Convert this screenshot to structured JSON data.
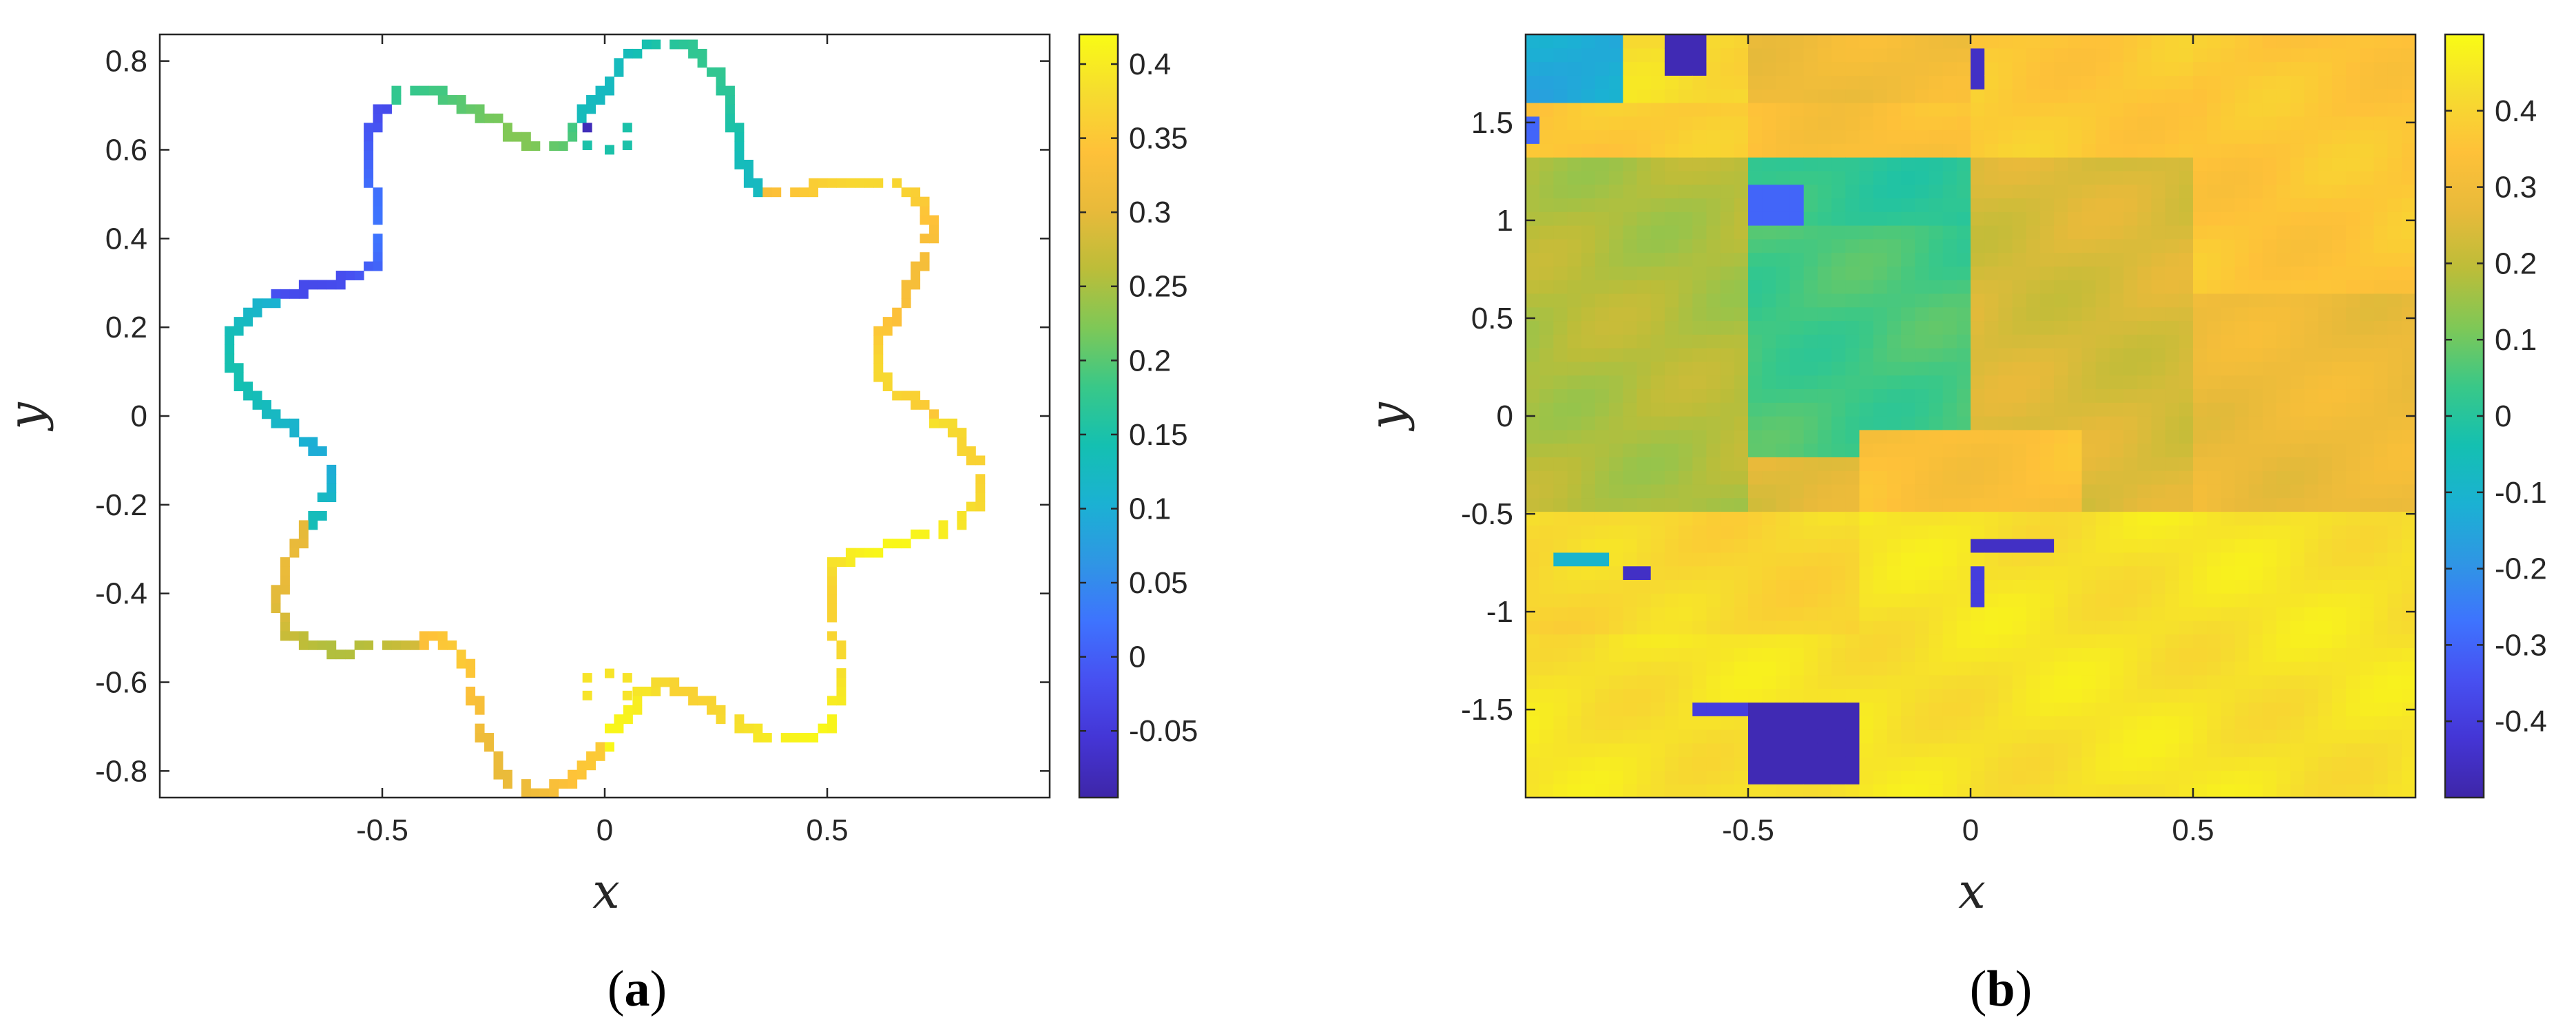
{
  "colors": {
    "colormap": [
      "#3e26a8",
      "#4435d5",
      "#4750f1",
      "#3e73fe",
      "#2f96e4",
      "#1bb1d3",
      "#14c0b1",
      "#39c888",
      "#7ec857",
      "#bcbd39",
      "#e8ba3a",
      "#fec139",
      "#f6dc2f",
      "#f9fb15"
    ],
    "frame": "#262626"
  },
  "chart_data": [
    {
      "type": "scatter",
      "panel_label": "(a)",
      "panel_letter": "a",
      "xlabel": "x",
      "ylabel": "y",
      "xlim": [
        -1.0,
        1.0
      ],
      "ylim": [
        -0.86,
        0.86
      ],
      "xticks": [
        -0.5,
        0,
        0.5
      ],
      "xtick_labels": [
        "-0.5",
        "0",
        "0.5"
      ],
      "yticks": [
        0.8,
        0.6,
        0.4,
        0.2,
        0,
        -0.2,
        -0.4,
        -0.6,
        -0.8
      ],
      "ytick_labels": [
        "0.8",
        "0.6",
        "0.4",
        "0.2",
        "0",
        "-0.2",
        "-0.4",
        "-0.6",
        "-0.8"
      ],
      "colorbar": {
        "lim": [
          -0.095,
          0.42
        ],
        "ticks": [
          0.4,
          0.35,
          0.3,
          0.25,
          0.2,
          0.15,
          0.1,
          0.05,
          0,
          -0.05
        ],
        "tick_labels": [
          "0.4",
          "0.35",
          "0.3",
          "0.25",
          "0.2",
          "0.15",
          "0.1",
          "0.05",
          "0",
          "-0.05"
        ]
      },
      "grid": false,
      "marker": "square-pixel",
      "description_of_data": "pixel samples along a flower-shaped closed boundary with 8 lobes plus small inner notches at top and bottom",
      "boundary": {
        "base_radius": 0.74,
        "lobe_amplitude": 0.12,
        "lobes": 8,
        "cells": 96
      },
      "color_regions": [
        {
          "angle_deg": [
            55,
            95
          ],
          "value": 0.15
        },
        {
          "angle_deg": [
            95,
            125
          ],
          "value": 0.2
        },
        {
          "angle_deg": [
            125,
            160
          ],
          "value": 0.0
        },
        {
          "angle_deg": [
            160,
            200
          ],
          "value": 0.12
        },
        {
          "angle_deg": [
            200,
            230
          ],
          "value": 0.28
        },
        {
          "angle_deg": [
            230,
            270
          ],
          "value": 0.33
        },
        {
          "angle_deg": [
            270,
            360
          ],
          "value": 0.39
        },
        {
          "angle_deg": [
            0,
            55
          ],
          "value": 0.35
        }
      ]
    },
    {
      "type": "heatmap",
      "panel_label": "(b)",
      "panel_letter": "b",
      "xlabel": "x",
      "ylabel": "y",
      "xlim": [
        -1.0,
        1.0
      ],
      "ylim": [
        -1.95,
        1.95
      ],
      "xticks": [
        -0.5,
        0,
        0.5
      ],
      "xtick_labels": [
        "-0.5",
        "0",
        "0.5"
      ],
      "yticks": [
        1.5,
        1,
        0.5,
        0,
        -0.5,
        -1,
        -1.5
      ],
      "ytick_labels": [
        "1.5",
        "1",
        "0.5",
        "0",
        "-0.5",
        "-1",
        "-1.5"
      ],
      "colorbar": {
        "lim": [
          -0.5,
          0.5
        ],
        "ticks": [
          0.4,
          0.3,
          0.2,
          0.1,
          0,
          -0.1,
          -0.2,
          -0.3,
          -0.4
        ],
        "tick_labels": [
          "0.4",
          "0.3",
          "0.2",
          "0.1",
          "0",
          "-0.1",
          "-0.2",
          "-0.3",
          "-0.4"
        ]
      },
      "grid": false,
      "regions": [
        {
          "x": [
            -1.0,
            1.0
          ],
          "y": [
            -1.95,
            -0.5
          ],
          "value": 0.44
        },
        {
          "x": [
            -1.0,
            1.0
          ],
          "y": [
            -0.5,
            1.95
          ],
          "value": 0.2
        },
        {
          "x": [
            -1.0,
            -0.5
          ],
          "y": [
            -0.5,
            1.3
          ],
          "value": 0.18
        },
        {
          "x": [
            -0.5,
            0.0
          ],
          "y": [
            -0.2,
            1.3
          ],
          "value": 0.05
        },
        {
          "x": [
            -0.5,
            0.0
          ],
          "y": [
            -0.5,
            -0.2
          ],
          "value": 0.25
        },
        {
          "x": [
            0.0,
            0.5
          ],
          "y": [
            -0.5,
            1.3
          ],
          "value": 0.24
        },
        {
          "x": [
            0.5,
            1.0
          ],
          "y": [
            -0.5,
            0.6
          ],
          "value": 0.29
        },
        {
          "x": [
            0.5,
            1.0
          ],
          "y": [
            0.6,
            1.95
          ],
          "value": 0.36
        },
        {
          "x": [
            -1.0,
            -0.5
          ],
          "y": [
            1.3,
            1.95
          ],
          "value": 0.42
        },
        {
          "x": [
            -0.5,
            0.0
          ],
          "y": [
            1.3,
            1.95
          ],
          "value": 0.34
        },
        {
          "x": [
            0.0,
            0.5
          ],
          "y": [
            1.3,
            1.95
          ],
          "value": 0.37
        },
        {
          "x": [
            -0.5,
            0.0
          ],
          "y": [
            1.0,
            1.3
          ],
          "value": 0.02
        },
        {
          "x": [
            -0.25,
            0.25
          ],
          "y": [
            -0.5,
            -0.1
          ],
          "value": 0.34
        },
        {
          "x": [
            -1.0,
            -0.25
          ],
          "y": [
            -1.1,
            -0.5
          ],
          "value": 0.41
        },
        {
          "x": [
            -0.5,
            0.0
          ],
          "y": [
            1.6,
            1.95
          ],
          "value": 0.3
        },
        {
          "x": [
            -1.0,
            -0.78
          ],
          "y": [
            1.6,
            1.95
          ],
          "value": -0.14
        },
        {
          "x": [
            -1.0,
            -0.5
          ],
          "y": [
            1.3,
            1.6
          ],
          "value": 0.37
        }
      ],
      "spots": [
        {
          "x": [
            -0.5,
            -0.26
          ],
          "y": [
            -1.9,
            -1.48
          ],
          "value": -0.48
        },
        {
          "x": [
            -0.63,
            -0.5
          ],
          "y": [
            -1.56,
            -1.48
          ],
          "value": -0.4
        },
        {
          "x": [
            -0.78,
            -0.72
          ],
          "y": [
            -0.84,
            -0.74
          ],
          "value": -0.45
        },
        {
          "x": [
            -0.94,
            -0.82
          ],
          "y": [
            -0.8,
            -0.72
          ],
          "value": -0.1
        },
        {
          "x": [
            0.0,
            0.18
          ],
          "y": [
            -0.72,
            -0.6
          ],
          "value": -0.45
        },
        {
          "x": [
            0.0,
            0.04
          ],
          "y": [
            -1.0,
            -0.8
          ],
          "value": -0.4
        },
        {
          "x": [
            -0.68,
            -0.6
          ],
          "y": [
            1.75,
            1.95
          ],
          "value": -0.48
        },
        {
          "x": [
            0.0,
            0.04
          ],
          "y": [
            1.7,
            1.85
          ],
          "value": -0.45
        },
        {
          "x": [
            -0.5,
            -0.38
          ],
          "y": [
            1.0,
            1.2
          ],
          "value": -0.3
        },
        {
          "x": [
            -1.0,
            -0.96
          ],
          "y": [
            1.4,
            1.5
          ],
          "value": -0.3
        }
      ]
    }
  ]
}
